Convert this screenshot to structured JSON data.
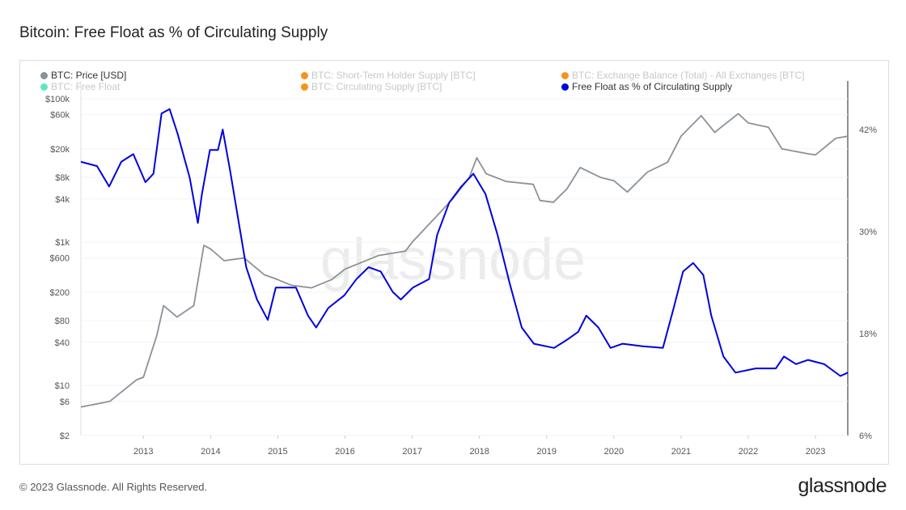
{
  "title": "Bitcoin: Free Float as % of Circulating Supply",
  "legend": [
    {
      "label": "BTC: Price [USD]",
      "color": "#8a9299",
      "active": true
    },
    {
      "label": "BTC: Short-Term Holder Supply [BTC]",
      "color": "#f7931a",
      "active": false
    },
    {
      "label": "BTC: Exchange Balance (Total) - All Exchanges [BTC]",
      "color": "#f7931a",
      "active": false
    },
    {
      "label": "BTC: Free Float",
      "color": "#5ee6c0",
      "active": false
    },
    {
      "label": "BTC: Circulating Supply [BTC]",
      "color": "#f7931a",
      "active": false
    },
    {
      "label": "Free Float as % of Circulating Supply",
      "color": "#0000e0",
      "active": true
    }
  ],
  "watermark": "glassnode",
  "footer": "© 2023 Glassnode. All Rights Reserved.",
  "logo": "glassnode",
  "chart_data": {
    "type": "line",
    "title": "Bitcoin: Free Float as % of Circulating Supply",
    "x_range": [
      2012.07,
      2023.48
    ],
    "x_ticks": [
      "2013",
      "2014",
      "2015",
      "2016",
      "2017",
      "2018",
      "2019",
      "2020",
      "2021",
      "2022",
      "2023"
    ],
    "y_left": {
      "scale": "log",
      "range": [
        2,
        100000
      ],
      "ticks": [
        [
          "$100k",
          100000
        ],
        [
          "$60k",
          60000
        ],
        [
          "$20k",
          20000
        ],
        [
          "$8k",
          8000
        ],
        [
          "$4k",
          4000
        ],
        [
          "$1k",
          1000
        ],
        [
          "$600",
          600
        ],
        [
          "$200",
          200
        ],
        [
          "$80",
          80
        ],
        [
          "$40",
          40
        ],
        [
          "$10",
          10
        ],
        [
          "$6",
          6
        ],
        [
          "$2",
          2
        ]
      ]
    },
    "y_right": {
      "scale": "linear",
      "range": [
        6,
        42
      ],
      "ticks": [
        [
          "42%",
          42
        ],
        [
          "30%",
          30
        ],
        [
          "18%",
          18
        ],
        [
          "6%",
          6
        ]
      ]
    },
    "series": [
      {
        "name": "BTC: Price [USD]",
        "axis": "left",
        "color": "#8a9299",
        "x": [
          2012.07,
          2012.5,
          2012.9,
          2013.0,
          2013.2,
          2013.3,
          2013.5,
          2013.75,
          2013.9,
          2014.0,
          2014.2,
          2014.5,
          2014.8,
          2015.0,
          2015.2,
          2015.5,
          2015.8,
          2016.0,
          2016.5,
          2016.9,
          2017.0,
          2017.4,
          2017.6,
          2017.85,
          2017.96,
          2018.1,
          2018.4,
          2018.8,
          2018.9,
          2019.1,
          2019.3,
          2019.5,
          2019.8,
          2020.0,
          2020.2,
          2020.5,
          2020.8,
          2021.0,
          2021.3,
          2021.5,
          2021.85,
          2022.0,
          2022.3,
          2022.5,
          2022.9,
          2023.0,
          2023.3,
          2023.48
        ],
        "y": [
          5,
          6,
          12,
          13,
          50,
          130,
          90,
          130,
          900,
          800,
          550,
          600,
          350,
          300,
          250,
          230,
          300,
          420,
          650,
          750,
          1000,
          2500,
          4000,
          8000,
          15000,
          9000,
          7000,
          6400,
          3800,
          3600,
          5500,
          11000,
          8000,
          7200,
          5000,
          9500,
          13000,
          30000,
          58000,
          34000,
          62000,
          46000,
          40000,
          20000,
          17000,
          16500,
          28000,
          30000
        ]
      },
      {
        "name": "Free Float as % of Circulating Supply",
        "axis": "right",
        "color": "#0000e0",
        "x": [
          2012.07,
          2012.31,
          2012.49,
          2012.67,
          2012.85,
          2013.03,
          2013.15,
          2013.27,
          2013.39,
          2013.51,
          2013.69,
          2013.81,
          2013.87,
          2013.99,
          2014.11,
          2014.18,
          2014.29,
          2014.41,
          2014.53,
          2014.69,
          2014.85,
          2014.97,
          2015.15,
          2015.27,
          2015.45,
          2015.57,
          2015.75,
          2015.99,
          2016.17,
          2016.35,
          2016.53,
          2016.71,
          2016.83,
          2017.01,
          2017.25,
          2017.37,
          2017.55,
          2017.73,
          2017.91,
          2018.09,
          2018.27,
          2018.45,
          2018.63,
          2018.81,
          2019.11,
          2019.29,
          2019.47,
          2019.59,
          2019.77,
          2019.95,
          2020.13,
          2020.43,
          2020.73,
          2020.89,
          2021.03,
          2021.18,
          2021.33,
          2021.45,
          2021.63,
          2021.81,
          2022.11,
          2022.41,
          2022.53,
          2022.71,
          2022.89,
          2023.13,
          2023.37,
          2023.48
        ],
        "y": [
          38.2,
          37.7,
          35.3,
          38.2,
          39.1,
          35.8,
          36.8,
          43.9,
          44.4,
          41.5,
          36.3,
          31.0,
          34.4,
          39.6,
          39.6,
          42.0,
          37.2,
          31.5,
          25.8,
          22.0,
          19.6,
          23.4,
          23.4,
          23.4,
          20.1,
          18.7,
          21.0,
          22.5,
          24.4,
          25.8,
          25.3,
          22.9,
          22.0,
          23.4,
          24.4,
          29.6,
          33.4,
          35.3,
          36.8,
          34.4,
          29.6,
          23.9,
          18.7,
          16.8,
          16.3,
          17.2,
          18.2,
          20.1,
          18.7,
          16.3,
          16.8,
          16.5,
          16.3,
          21.0,
          25.3,
          26.3,
          24.9,
          20.1,
          15.3,
          13.4,
          13.9,
          13.9,
          15.3,
          14.4,
          14.9,
          14.4,
          13.0,
          13.4
        ]
      }
    ]
  }
}
